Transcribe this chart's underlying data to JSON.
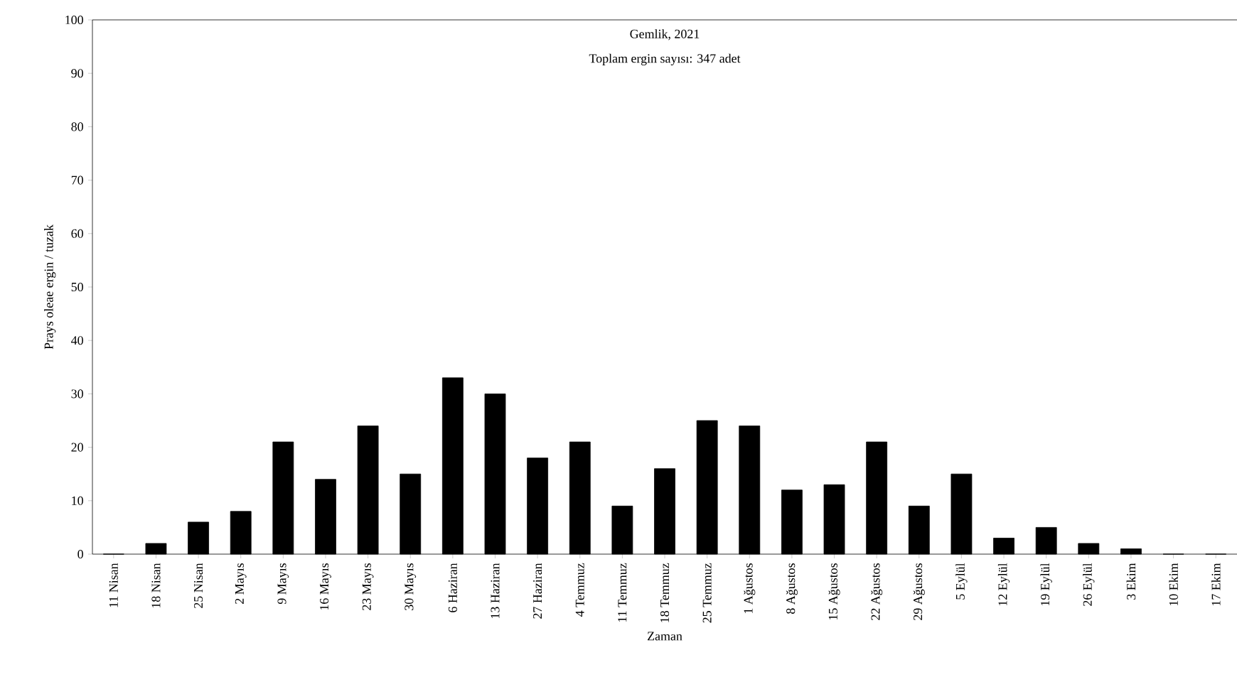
{
  "chart_data": {
    "type": "bar",
    "title": "Gemlik, 2021",
    "subtitle": "Toplam ergin sayısı: 347 adet",
    "xlabel": "Zaman",
    "ylabel": "Prays oleae ergin / tuzak",
    "categories": [
      "11 Nisan",
      "18 Nisan",
      "25 Nisan",
      "2 Mayıs",
      "9 Mayıs",
      "16 Mayıs",
      "23 Mayıs",
      "30 Mayıs",
      "6 Haziran",
      "13 Haziran",
      "27 Haziran",
      "4 Temmuz",
      "11 Temmuz",
      "18 Temmuz",
      "25 Temmuz",
      "1 Ağustos",
      "8 Ağustos",
      "15 Ağustos",
      "22 Ağustos",
      "29 Ağustos",
      "5 Eylül",
      "12 Eylül",
      "19 Eylül",
      "26 Eylül",
      "3 Ekim",
      "10 Ekim",
      "17 Ekim"
    ],
    "values": [
      0,
      2,
      6,
      8,
      21,
      14,
      24,
      15,
      33,
      30,
      18,
      21,
      9,
      16,
      25,
      24,
      12,
      13,
      21,
      9,
      15,
      3,
      5,
      2,
      1,
      0,
      0
    ],
    "color": "#000000",
    "ylim": [
      0,
      100
    ],
    "yticks": [
      0,
      10,
      20,
      30,
      40,
      50,
      60,
      70,
      80,
      90,
      100
    ],
    "grid": false
  }
}
